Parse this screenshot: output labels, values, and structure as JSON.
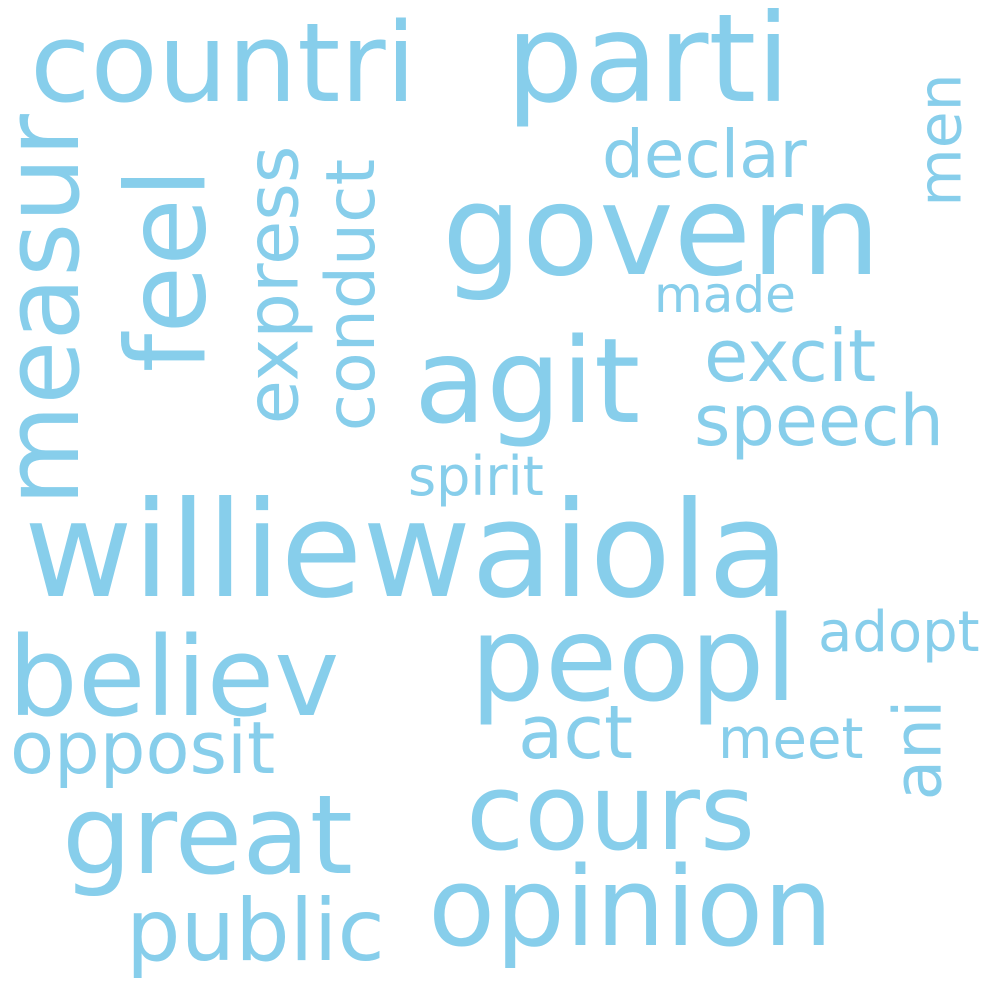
{
  "color": "#87ceeb",
  "words": {
    "williewaiola": "williewaiola",
    "peopl": "peopl",
    "govern": "govern",
    "agit": "agit",
    "countri": "countri",
    "parti": "parti",
    "measur": "measur",
    "feel": "feel",
    "believ": "believ",
    "cours": "cours",
    "great": "great",
    "opinion": "opinion",
    "express": "express",
    "conduct": "conduct",
    "excit": "excit",
    "speech": "speech",
    "declar": "declar",
    "men": "men",
    "made": "made",
    "spirit": "spirit",
    "opposit": "opposit",
    "act": "act",
    "adopt": "adopt",
    "meet": "meet",
    "ani": "ani",
    "public": "public"
  }
}
